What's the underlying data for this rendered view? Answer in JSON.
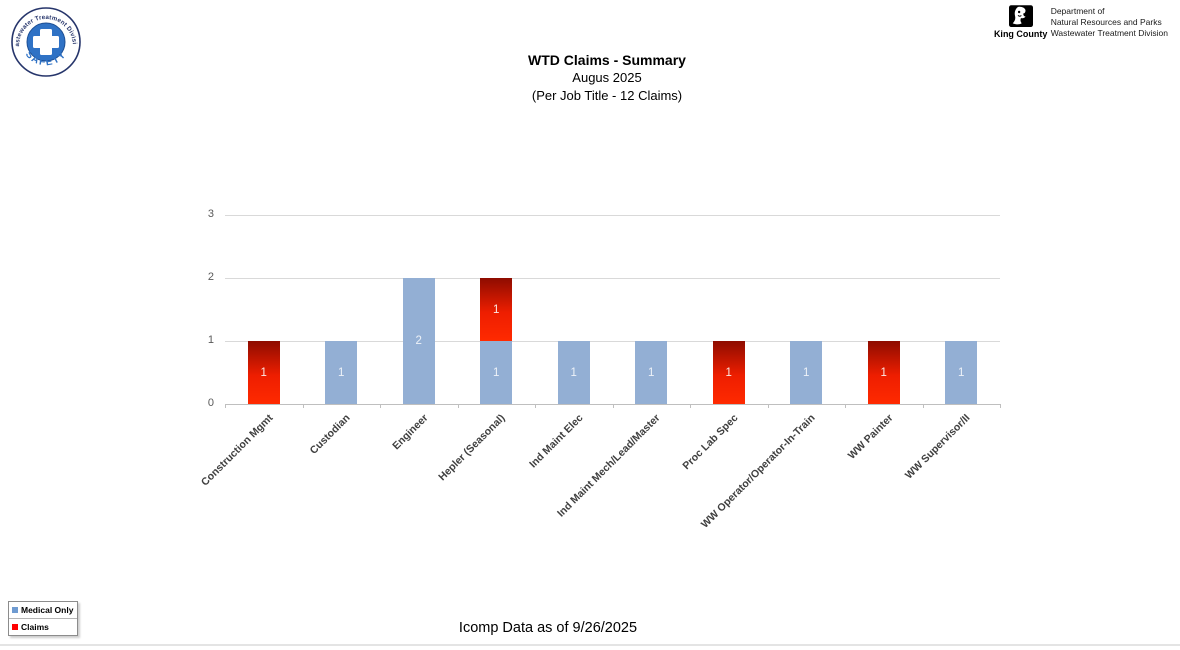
{
  "header": {
    "safety_logo": {
      "ring_text": "Wastewater Treatment Division",
      "bottom_text": "SAFETY"
    },
    "agency": {
      "name": "King County",
      "dept_lines": [
        "Department of",
        "Natural Resources and Parks",
        "Wastewater Treatment Division"
      ]
    }
  },
  "title": {
    "line1": "WTD Claims - Summary",
    "line2": "Augus 2025",
    "line3": "(Per Job Title - 12 Claims)"
  },
  "chart_data": {
    "type": "bar",
    "stacked": true,
    "bar_value_labels": true,
    "categories": [
      "Construction Mgmt",
      "Custodian",
      "Engineer",
      "Hepler (Seasonal)",
      "Ind Maint Elec",
      "Ind Maint Mech/Lead/Master",
      "Proc Lab Spec",
      "WW Operator/Operator-In-Train",
      "WW Painter",
      "WW Supervisor/II"
    ],
    "series": [
      {
        "name": "Medical Only",
        "color": "#95B3D7",
        "values": [
          0,
          1,
          2,
          1,
          1,
          1,
          0,
          1,
          0,
          1
        ]
      },
      {
        "name": "Claims",
        "color": "#E02000",
        "values": [
          1,
          0,
          0,
          1,
          0,
          0,
          1,
          0,
          1,
          0
        ]
      }
    ],
    "ylim": [
      0,
      3
    ],
    "yticks": [
      0,
      1,
      2,
      3
    ],
    "grid": true,
    "legend_position": "bottom-left",
    "xlabel": "",
    "ylabel": ""
  },
  "legend": {
    "items": [
      {
        "label": "Medical Only",
        "color": "#6F9BD1"
      },
      {
        "label": "Claims",
        "color": "#FF0000"
      }
    ]
  },
  "footer": {
    "text": "Icomp Data as of 9/26/2025"
  }
}
